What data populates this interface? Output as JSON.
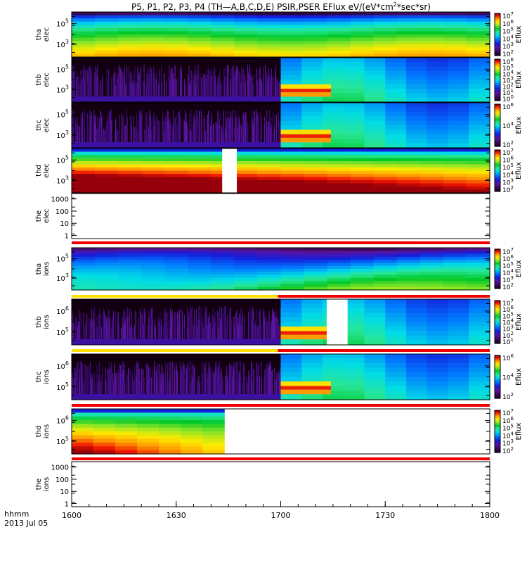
{
  "chart_data": {
    "type": "heatmap",
    "title": {
      "pre": "P5, P1, P2, P3, P4 (TH—A,B,C,D,E) PSIR,PSER EFlux eV/(eV*cm",
      "sup": "2",
      "post": "*sec*sr)"
    },
    "x_ticks": [
      "1600",
      "1630",
      "1700",
      "1730",
      "1800"
    ],
    "time_label": "hhmm",
    "date_label": "2013 Jul 05",
    "colorbar_label": "Eflux",
    "panels": [
      {
        "id": "tha-elec",
        "ylabel": [
          "tha",
          "elec"
        ],
        "yticks": [
          [
            "10",
            "5"
          ],
          [
            "10",
            "3"
          ]
        ],
        "kind": "spec",
        "profile": [
          [
            0.01,
            0.05
          ],
          [
            0.06,
            0.4
          ],
          [
            0.16,
            0.58
          ],
          [
            0.3,
            0.73
          ],
          [
            0.44,
            0.78
          ],
          [
            0.58,
            0.8
          ],
          [
            0.73,
            0.82
          ],
          [
            0.87,
            0.84
          ],
          [
            1.0,
            0.85
          ]
        ],
        "colorbar": [
          "10|7",
          "10|6",
          "10|5",
          "10|4",
          "10|3",
          "10|2"
        ]
      },
      {
        "id": "thb-elec",
        "ylabel": [
          "thb",
          "elec"
        ],
        "yticks": [
          [
            "10",
            "5"
          ],
          [
            "10",
            "3"
          ]
        ],
        "kind": "noise_split",
        "split": 0.5,
        "blocks": [
          [
            0.5,
            0.62,
            0.78,
            0.95,
            1.0
          ]
        ],
        "colorbar": [
          "10|6",
          "10|5",
          "10|4",
          "10|3",
          "10|2",
          "10|1",
          "10|0"
        ]
      },
      {
        "id": "thc-elec",
        "ylabel": [
          "thc",
          "elec"
        ],
        "yticks": [
          [
            "10",
            "5"
          ],
          [
            "10",
            "3"
          ]
        ],
        "kind": "noise_split",
        "split": 0.5,
        "blocks": [
          [
            0.5,
            0.6,
            0.72,
            0.88,
            0.95
          ]
        ],
        "colorbar": [
          "10|6",
          "10|4",
          "10|2"
        ]
      },
      {
        "id": "thd-elec",
        "ylabel": [
          "thd",
          "elec"
        ],
        "yticks": [
          [
            "10",
            "5"
          ],
          [
            "10",
            "3"
          ]
        ],
        "kind": "spec_gap",
        "gap": [
          0.36,
          0.395
        ],
        "colorbar": [
          "10|7",
          "10|6",
          "10|5",
          "10|4",
          "10|3",
          "10|2"
        ]
      },
      {
        "id": "the-elec",
        "ylabel": [
          "the",
          "elec"
        ],
        "yticks": [
          [
            "1000"
          ],
          [
            "100"
          ],
          [
            "10"
          ],
          [
            "1"
          ]
        ],
        "kind": "empty"
      },
      {
        "id": "tha-ions",
        "ylabel": [
          "tha",
          "ions"
        ],
        "yticks": [
          [
            "10",
            "5"
          ],
          [
            "10",
            "3"
          ]
        ],
        "kind": "spec",
        "colorbar": [
          "10|7",
          "10|6",
          "10|5",
          "10|4",
          "10|3",
          "10|2"
        ]
      },
      {
        "id": "thb-ions",
        "ylabel": [
          "thb",
          "ions"
        ],
        "yticks": [
          [
            "10",
            "6"
          ],
          [
            "10",
            "5"
          ]
        ],
        "kind": "noise_split_gap",
        "split": 0.5,
        "gap": [
          0.61,
          0.66
        ],
        "colorbar": [
          "10|7",
          "10|6",
          "10|5",
          "10|4",
          "10|3",
          "10|2",
          "10|1"
        ]
      },
      {
        "id": "thc-ions",
        "ylabel": [
          "thc",
          "ions"
        ],
        "yticks": [
          [
            "10",
            "6"
          ],
          [
            "10",
            "5"
          ]
        ],
        "kind": "noise_split",
        "split": 0.5,
        "colorbar": [
          "10|6",
          "10|4",
          "10|2"
        ]
      },
      {
        "id": "thd-ions",
        "ylabel": [
          "thd",
          "ions"
        ],
        "yticks": [
          [
            "10",
            "6"
          ],
          [
            "10",
            "5"
          ]
        ],
        "kind": "partial",
        "end": 0.365,
        "colorbar": [
          "10|7",
          "10|6",
          "10|5",
          "10|4",
          "10|3",
          "10|2"
        ]
      },
      {
        "id": "the-ions",
        "ylabel": [
          "the",
          "ions"
        ],
        "yticks": [
          [
            "1000"
          ],
          [
            "100"
          ],
          [
            "10"
          ],
          [
            "1"
          ]
        ],
        "kind": "empty"
      }
    ],
    "mode_bars": [
      {
        "after": "the-elec",
        "segments": [
          [
            0,
            1,
            "#f00000"
          ]
        ]
      },
      {
        "after": "tha-ions",
        "segments": [
          [
            0,
            0.493,
            "#ffe100"
          ],
          [
            0.493,
            1,
            "#f00000"
          ]
        ]
      },
      {
        "after": "thb-ions",
        "segments": [
          [
            0,
            0.493,
            "#ffe100"
          ],
          [
            0.493,
            1,
            "#f00000"
          ]
        ]
      },
      {
        "after": "thc-ions",
        "segments": [
          [
            0,
            1,
            "#f00000"
          ]
        ]
      },
      {
        "after": "thd-ions",
        "segments": [
          [
            0,
            1,
            "#f00000"
          ]
        ]
      }
    ]
  }
}
